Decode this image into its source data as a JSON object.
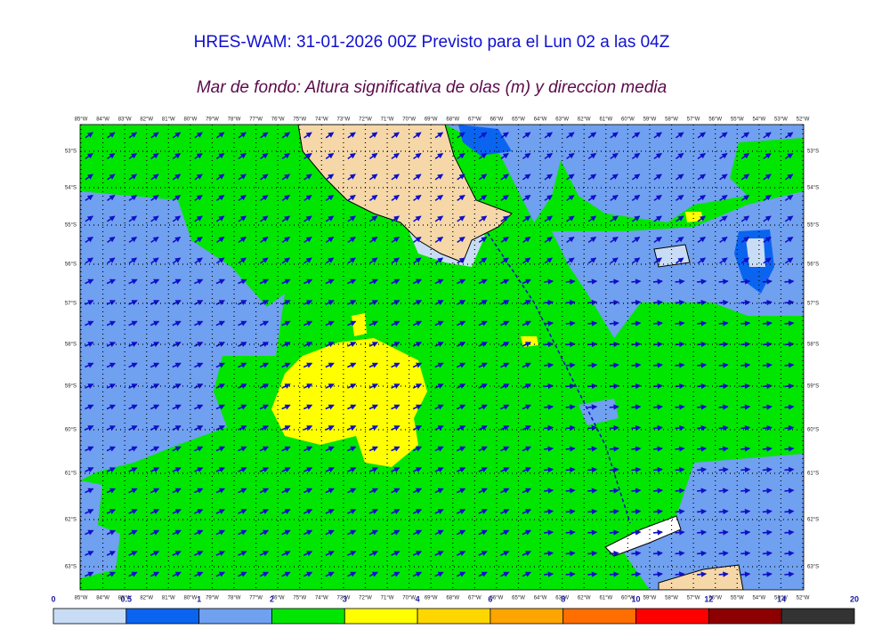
{
  "header": {
    "title": "HRES-WAM: 31-01-2026 00Z Previsto para el Lun 02 a las 04Z",
    "subtitle": "Mar de fondo: Altura significativa de olas (m) y direccion media"
  },
  "map": {
    "longitudes": [
      "85°W",
      "84°W",
      "83°W",
      "82°W",
      "81°W",
      "80°W",
      "79°W",
      "78°W",
      "77°W",
      "76°W",
      "75°W",
      "74°W",
      "73°W",
      "72°W",
      "71°W",
      "70°W",
      "69°W",
      "68°W",
      "67°W",
      "66°W",
      "65°W",
      "64°W",
      "63°W",
      "62°W",
      "61°W",
      "60°W",
      "59°W",
      "58°W",
      "57°W",
      "56°W",
      "55°W",
      "54°W",
      "53°W",
      "52°W"
    ],
    "latitudes": [
      "53°S",
      "54°S",
      "55°S",
      "56°S",
      "57°S",
      "58°S",
      "59°S",
      "60°S",
      "61°S",
      "62°S",
      "63°S"
    ]
  },
  "legend": {
    "ticks": [
      0,
      0.5,
      1,
      2,
      3,
      4,
      6,
      8,
      10,
      12,
      14,
      20
    ],
    "colors": [
      "#c8dcf6",
      "#0a64f0",
      "#70a0f0",
      "#00e600",
      "#ffff00",
      "#ffd700",
      "#ffa500",
      "#ff6e00",
      "#ff0000",
      "#8c0000",
      "#333333"
    ]
  }
}
